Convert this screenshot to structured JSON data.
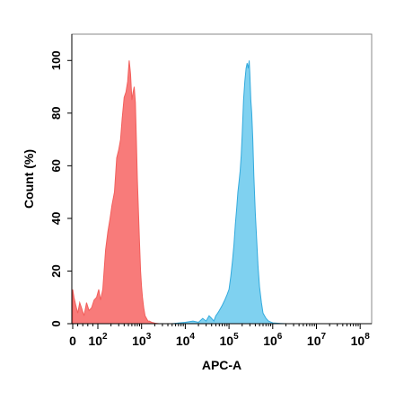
{
  "chart_data": {
    "type": "area",
    "title": "",
    "xlabel": "APC-A",
    "ylabel": "Count  (%)",
    "xscale": "biexponential",
    "xlim": [
      0,
      100000000
    ],
    "ylim": [
      0,
      110
    ],
    "grid": false,
    "legend": "none",
    "x_tick_labels": [
      {
        "value": 0,
        "base": "0",
        "exp": ""
      },
      {
        "value": 100,
        "base": "10",
        "exp": "2"
      },
      {
        "value": 1000,
        "base": "10",
        "exp": "3"
      },
      {
        "value": 10000,
        "base": "10",
        "exp": "4"
      },
      {
        "value": 100000,
        "base": "10",
        "exp": "5"
      },
      {
        "value": 1000000,
        "base": "10",
        "exp": "6"
      },
      {
        "value": 10000000,
        "base": "10",
        "exp": "7"
      },
      {
        "value": 100000000,
        "base": "10",
        "exp": "8"
      }
    ],
    "y_ticks": [
      0,
      20,
      40,
      60,
      80,
      100
    ],
    "series": [
      {
        "color": "#f25f5c",
        "fill": "#f87b7a",
        "x": [
          0,
          5,
          12,
          20,
          28,
          35,
          45,
          55,
          65,
          75,
          85,
          95,
          105,
          115,
          130,
          150,
          170,
          190,
          210,
          240,
          270,
          300,
          330,
          360,
          400,
          440,
          480,
          520,
          560,
          600,
          640,
          680,
          720,
          760,
          800,
          850,
          900,
          950,
          1000,
          1050,
          1120,
          1200,
          1300,
          1400,
          1500,
          1700,
          2000,
          2500
        ],
        "y": [
          13,
          10,
          7,
          4,
          8,
          6,
          3,
          8,
          5,
          6,
          9,
          10,
          13,
          9,
          13,
          28,
          35,
          40,
          45,
          50,
          63,
          66,
          70,
          78,
          86,
          88,
          92,
          100,
          95,
          85,
          88,
          90,
          84,
          70,
          55,
          42,
          30,
          20,
          14,
          10,
          6,
          3,
          2,
          1,
          1,
          0.5,
          0.2,
          0
        ]
      },
      {
        "color": "#33aadd",
        "fill": "#7fd1f0",
        "x": [
          5000,
          10000,
          15000,
          20000,
          25000,
          30000,
          35000,
          40000,
          45000,
          50000,
          55000,
          60000,
          70000,
          80000,
          90000,
          100000,
          110000,
          120000,
          130000,
          140000,
          150000,
          160000,
          170000,
          180000,
          190000,
          200000,
          215000,
          230000,
          245000,
          260000,
          275000,
          290000,
          300000,
          315000,
          330000,
          350000,
          370000,
          400000,
          430000,
          460000,
          500000,
          550000,
          600000,
          700000,
          800000,
          900000,
          1000000,
          1200000,
          1500000,
          2000000
        ],
        "y": [
          0,
          0.5,
          1,
          0.5,
          2,
          1,
          3,
          2,
          1,
          3,
          4,
          5,
          7,
          9,
          11,
          13,
          18,
          24,
          30,
          38,
          44,
          50,
          54,
          58,
          64,
          72,
          85,
          92,
          97,
          99,
          97,
          100,
          95,
          85,
          80,
          70,
          56,
          42,
          32,
          22,
          14,
          8,
          4,
          2,
          1,
          0.6,
          0.3,
          0.2,
          0.1,
          0
        ]
      }
    ]
  }
}
